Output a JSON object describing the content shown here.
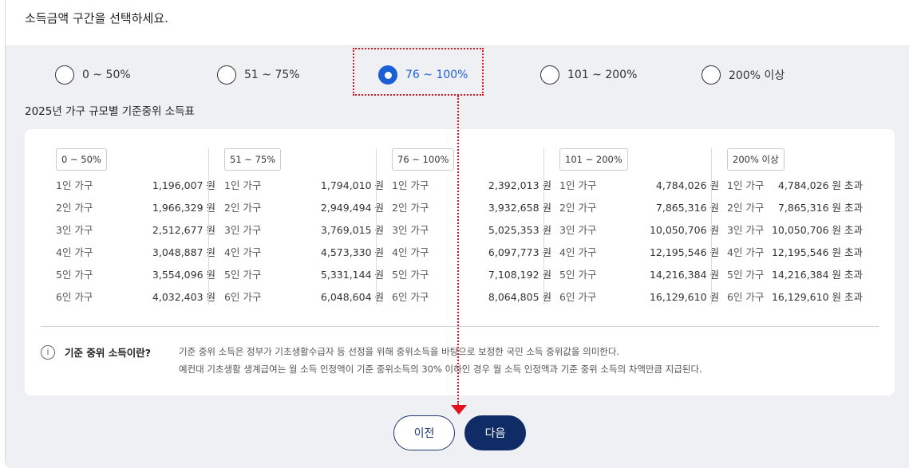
{
  "header": {
    "title": "소득금액 구간을 선택하세요."
  },
  "radios": [
    {
      "label": "0 ~ 50%",
      "selected": false
    },
    {
      "label": "51 ~ 75%",
      "selected": false
    },
    {
      "label": "76 ~ 100%",
      "selected": true
    },
    {
      "label": "101 ~ 200%",
      "selected": false
    },
    {
      "label": "200% 이상",
      "selected": false
    }
  ],
  "table": {
    "title": "2025년 가구 규모별 기준중위 소득표",
    "columns": [
      {
        "tag": "0 ~ 50%",
        "rows": [
          {
            "label": "1인 가구",
            "value": "1,196,007 원"
          },
          {
            "label": "2인 가구",
            "value": "1,966,329 원"
          },
          {
            "label": "3인 가구",
            "value": "2,512,677 원"
          },
          {
            "label": "4인 가구",
            "value": "3,048,887 원"
          },
          {
            "label": "5인 가구",
            "value": "3,554,096 원"
          },
          {
            "label": "6인 가구",
            "value": "4,032,403 원"
          }
        ]
      },
      {
        "tag": "51 ~ 75%",
        "rows": [
          {
            "label": "1인 가구",
            "value": "1,794,010 원"
          },
          {
            "label": "2인 가구",
            "value": "2,949,494 원"
          },
          {
            "label": "3인 가구",
            "value": "3,769,015 원"
          },
          {
            "label": "4인 가구",
            "value": "4,573,330 원"
          },
          {
            "label": "5인 가구",
            "value": "5,331,144 원"
          },
          {
            "label": "6인 가구",
            "value": "6,048,604 원"
          }
        ]
      },
      {
        "tag": "76 ~ 100%",
        "rows": [
          {
            "label": "1인 가구",
            "value": "2,392,013 원"
          },
          {
            "label": "2인 가구",
            "value": "3,932,658 원"
          },
          {
            "label": "3인 가구",
            "value": "5,025,353 원"
          },
          {
            "label": "4인 가구",
            "value": "6,097,773 원"
          },
          {
            "label": "5인 가구",
            "value": "7,108,192 원"
          },
          {
            "label": "6인 가구",
            "value": "8,064,805 원"
          }
        ]
      },
      {
        "tag": "101 ~ 200%",
        "rows": [
          {
            "label": "1인 가구",
            "value": "4,784,026 원"
          },
          {
            "label": "2인 가구",
            "value": "7,865,316 원"
          },
          {
            "label": "3인 가구",
            "value": "10,050,706 원"
          },
          {
            "label": "4인 가구",
            "value": "12,195,546 원"
          },
          {
            "label": "5인 가구",
            "value": "14,216,384 원"
          },
          {
            "label": "6인 가구",
            "value": "16,129,610 원"
          }
        ]
      },
      {
        "tag": "200% 이상",
        "rows": [
          {
            "label": "1인 가구",
            "value": "4,784,026 원 초과"
          },
          {
            "label": "2인 가구",
            "value": "7,865,316 원 초과"
          },
          {
            "label": "3인 가구",
            "value": "10,050,706 원 초과"
          },
          {
            "label": "4인 가구",
            "value": "12,195,546 원 초과"
          },
          {
            "label": "5인 가구",
            "value": "14,216,384 원 초과"
          },
          {
            "label": "6인 가구",
            "value": "16,129,610 원 초과"
          }
        ]
      }
    ]
  },
  "info": {
    "icon": "info-icon",
    "icon_glyph": "i",
    "title": "기준 중위 소득이란?",
    "line1": "기준 중위 소득은 정부가 기초생활수급자 등 선정을 위해 중위소득을 바탕으로 보정한 국민 소득 중위값을 의미한다.",
    "line2": "예컨대 기초생활 생계급여는 월 소득 인정액이 기준 중위소득의 30% 이하인 경우 월 소득 인정액과 기준 중위 소득의 차액만큼 지급된다."
  },
  "buttons": {
    "prev": "이전",
    "next": "다음"
  },
  "colors": {
    "accent": "#1a5fd6",
    "primary_button": "#0f2c66",
    "annotation": "#e0141e"
  }
}
